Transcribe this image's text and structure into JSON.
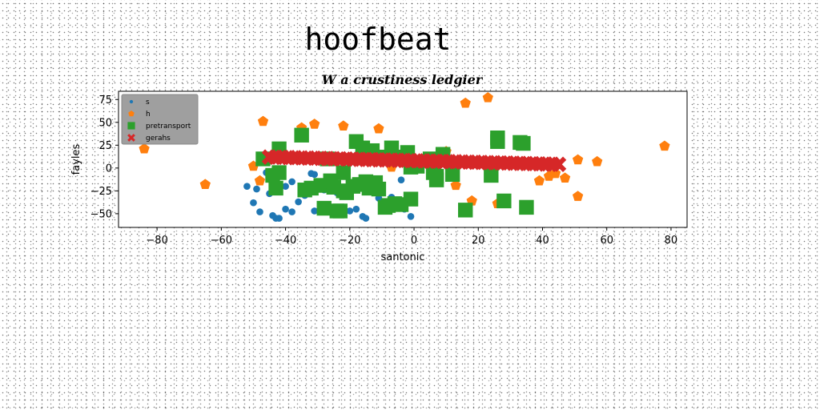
{
  "chart_data": {
    "type": "scatter",
    "title": "hoofbeat",
    "subtitle": "W a crustiness ledgier",
    "xlabel": "santonic",
    "ylabel": "fayles",
    "xlim": [
      -92,
      85
    ],
    "ylim": [
      -65,
      84
    ],
    "xticks": [
      -80,
      -60,
      -40,
      -20,
      0,
      20,
      40,
      60,
      80
    ],
    "yticks": [
      -50,
      -25,
      0,
      25,
      50,
      75
    ],
    "grid": false,
    "legend_position": "top-left",
    "series": [
      {
        "name": "s",
        "marker": "circle",
        "color": "#1f77b4",
        "points": [
          [
            -52,
            -20
          ],
          [
            -50,
            -38
          ],
          [
            -49,
            -23
          ],
          [
            -48,
            -48
          ],
          [
            -46,
            -5
          ],
          [
            -45,
            -28
          ],
          [
            -44,
            -52
          ],
          [
            -43,
            -55
          ],
          [
            -42,
            -55
          ],
          [
            -40,
            -20
          ],
          [
            -40,
            -45
          ],
          [
            -38,
            -48
          ],
          [
            -38,
            -15
          ],
          [
            -36,
            -37
          ],
          [
            -34,
            -30
          ],
          [
            -32,
            -6
          ],
          [
            -31,
            -7
          ],
          [
            -31,
            -47
          ],
          [
            -29,
            -18
          ],
          [
            -28,
            -24
          ],
          [
            -26,
            -21
          ],
          [
            -24,
            -27
          ],
          [
            -20,
            -47
          ],
          [
            -18,
            -45
          ],
          [
            -16,
            -53
          ],
          [
            -15,
            -55
          ],
          [
            -14,
            -24
          ],
          [
            -12,
            -23
          ],
          [
            -11,
            -33
          ],
          [
            -9,
            -40
          ],
          [
            -7,
            -32
          ],
          [
            -4,
            -13
          ],
          [
            -3,
            -45
          ],
          [
            -1,
            -53
          ]
        ]
      },
      {
        "name": "h",
        "marker": "pentagon",
        "color": "#ff7f0e",
        "points": [
          [
            -84,
            21
          ],
          [
            -65,
            -18
          ],
          [
            -50,
            2
          ],
          [
            -48,
            -14
          ],
          [
            -47,
            51
          ],
          [
            -35,
            44
          ],
          [
            -31,
            48
          ],
          [
            -22,
            46
          ],
          [
            -11,
            43
          ],
          [
            -7,
            1
          ],
          [
            10,
            18
          ],
          [
            13,
            -19
          ],
          [
            16,
            71
          ],
          [
            18,
            -36
          ],
          [
            23,
            77
          ],
          [
            26,
            -39
          ],
          [
            39,
            -14
          ],
          [
            42,
            -9
          ],
          [
            44,
            -6
          ],
          [
            47,
            -11
          ],
          [
            51,
            9
          ],
          [
            51,
            -31
          ],
          [
            57,
            7
          ],
          [
            78,
            24
          ]
        ]
      },
      {
        "name": "pretransport",
        "marker": "square",
        "color": "#2ca02c",
        "points": [
          [
            -47,
            10
          ],
          [
            -44,
            -8
          ],
          [
            -43,
            -22
          ],
          [
            -42,
            21
          ],
          [
            -42,
            -5
          ],
          [
            -35,
            36
          ],
          [
            -34,
            -24
          ],
          [
            -32,
            -22
          ],
          [
            -29,
            -19
          ],
          [
            -28,
            -44
          ],
          [
            -27,
            10
          ],
          [
            -26,
            -14
          ],
          [
            -25,
            -21
          ],
          [
            -24,
            -47
          ],
          [
            -23,
            -47
          ],
          [
            -22,
            -5
          ],
          [
            -22,
            -25
          ],
          [
            -21,
            -27
          ],
          [
            -19,
            -20
          ],
          [
            -18,
            29
          ],
          [
            -17,
            -18
          ],
          [
            -16,
            22
          ],
          [
            -15,
            -15
          ],
          [
            -14,
            -22
          ],
          [
            -13,
            19
          ],
          [
            -12,
            -16
          ],
          [
            -11,
            -23
          ],
          [
            -10,
            12
          ],
          [
            -9,
            -43
          ],
          [
            -8,
            -41
          ],
          [
            -7,
            22
          ],
          [
            -6,
            -39
          ],
          [
            -5,
            12
          ],
          [
            -4,
            -40
          ],
          [
            -2,
            17
          ],
          [
            -1,
            1
          ],
          [
            -1,
            -34
          ],
          [
            1,
            2
          ],
          [
            5,
            10
          ],
          [
            6,
            -5
          ],
          [
            7,
            -9
          ],
          [
            7,
            -13
          ],
          [
            9,
            15
          ],
          [
            12,
            -7
          ],
          [
            16,
            -46
          ],
          [
            24,
            -8
          ],
          [
            26,
            29
          ],
          [
            26,
            33
          ],
          [
            28,
            -36
          ],
          [
            33,
            28
          ],
          [
            34,
            27
          ],
          [
            35,
            -43
          ]
        ]
      },
      {
        "name": "gerahs",
        "marker": "x",
        "color": "#d62728",
        "x_range": [
          -45,
          45
        ],
        "y_start": 12,
        "y_end": 4,
        "count": 46
      }
    ]
  }
}
